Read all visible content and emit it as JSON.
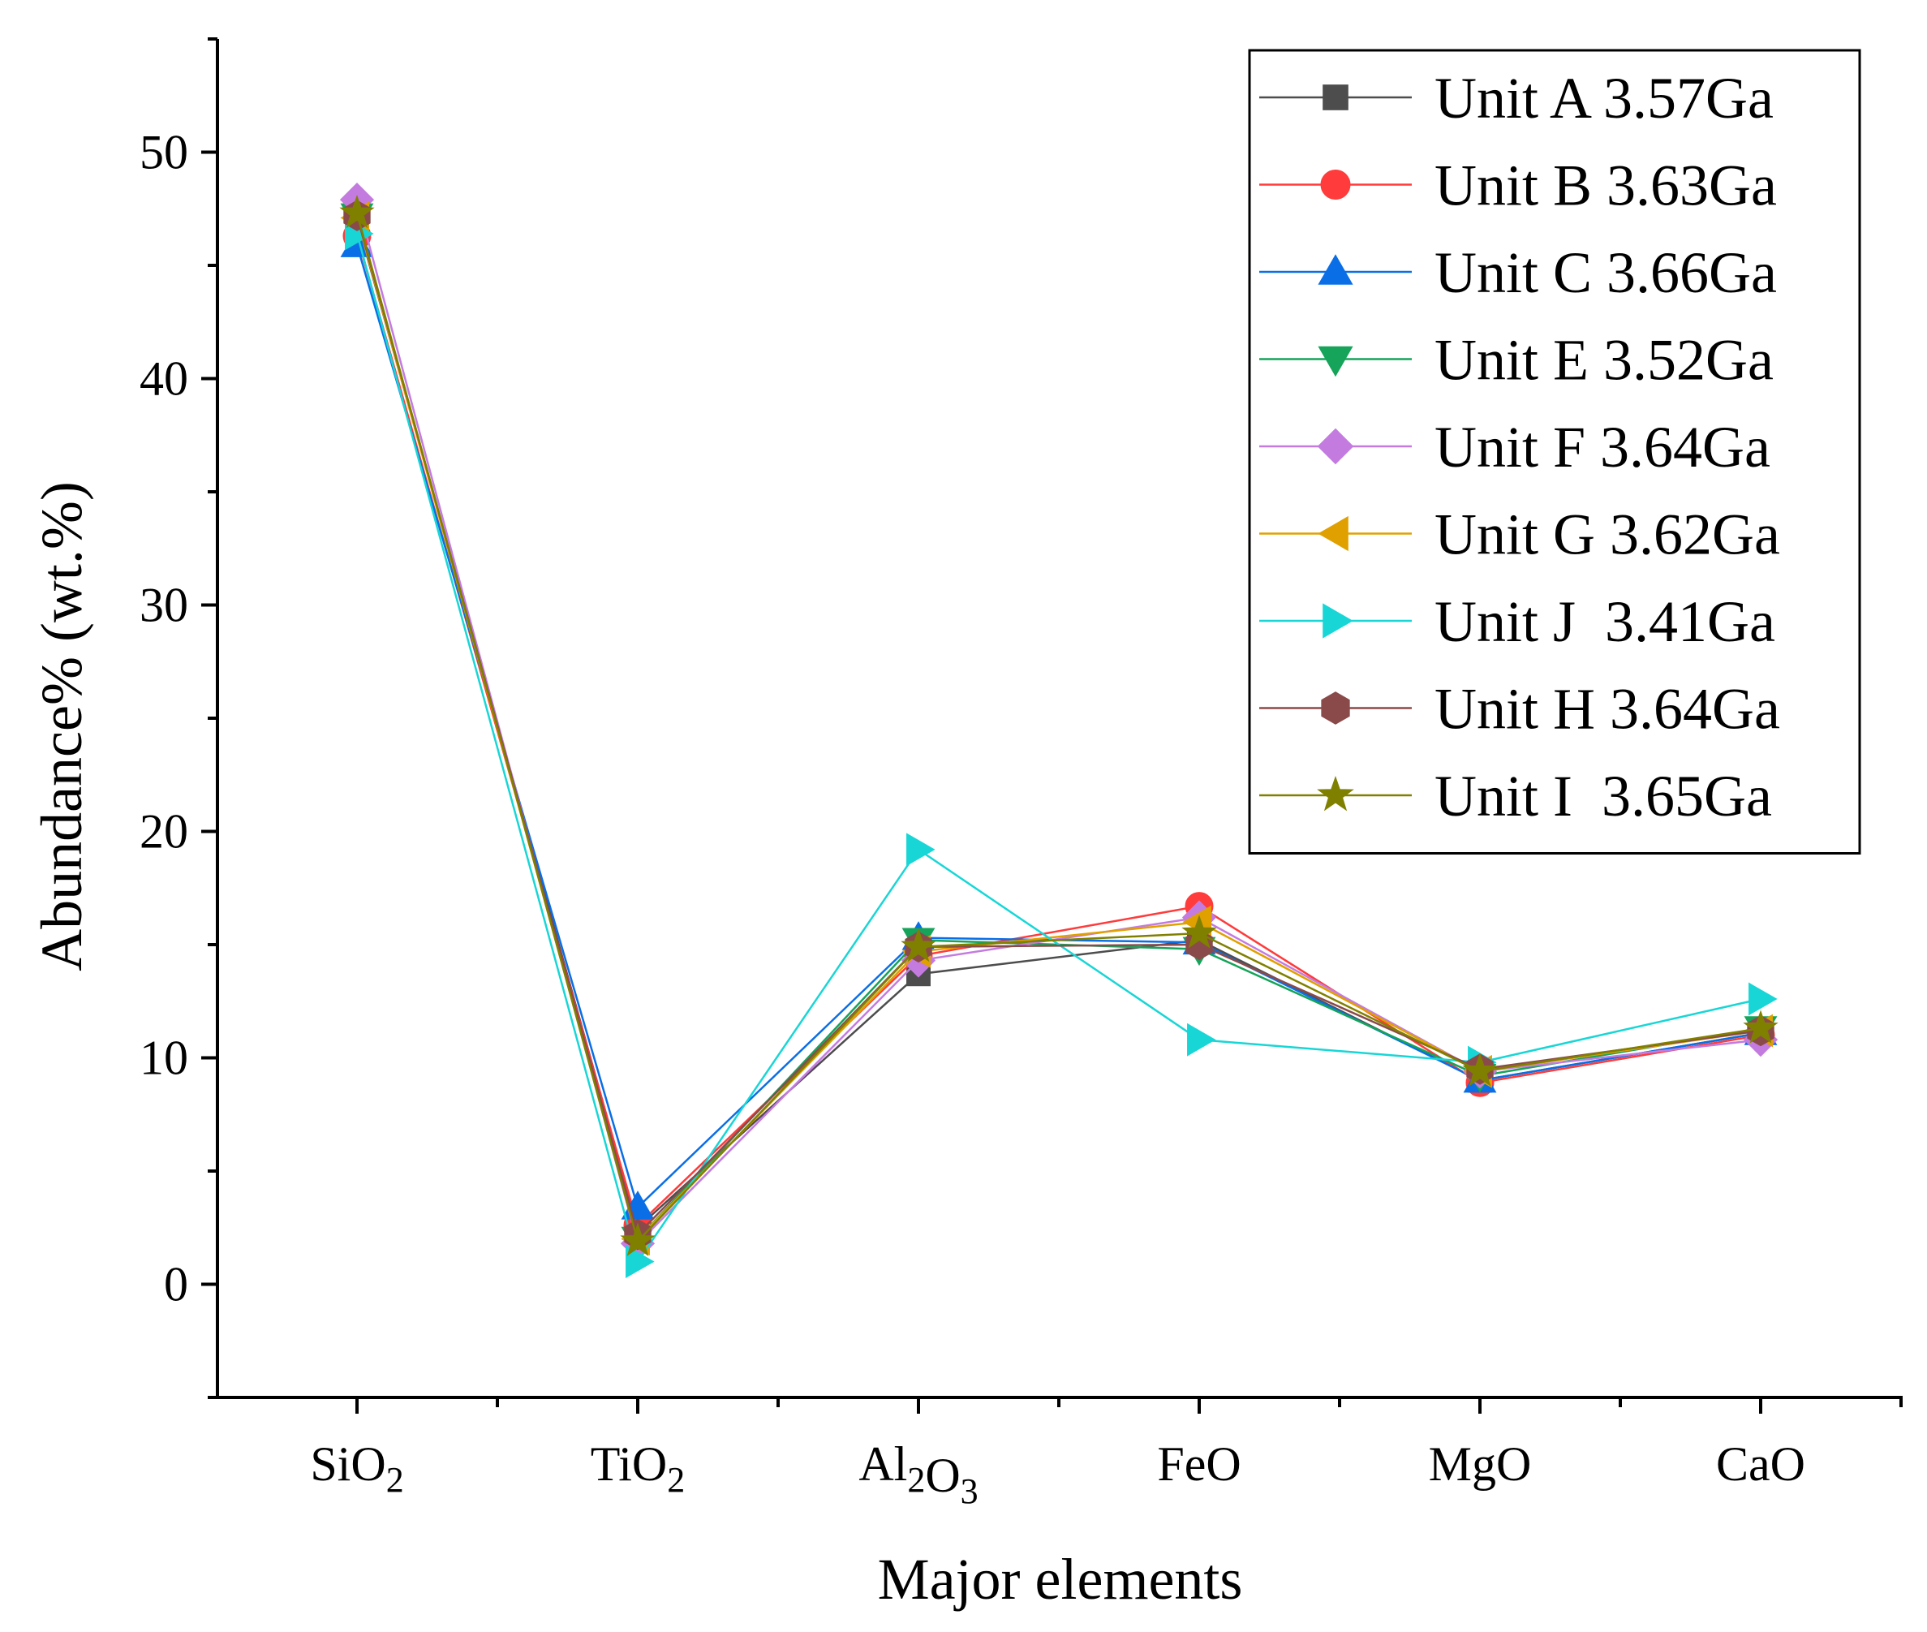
{
  "chart_data": {
    "type": "line",
    "title": "",
    "xlabel": "Major elements",
    "ylabel": "Abundance% (wt.%)",
    "categories": [
      {
        "base": "SiO",
        "subs": [
          [
            "2",
            "O"
          ]
        ],
        "label": "SiO2",
        "parts": [
          {
            "t": "SiO",
            "sub": false
          },
          {
            "t": "2",
            "sub": true
          }
        ]
      },
      {
        "base": "TiO",
        "label": "TiO2",
        "parts": [
          {
            "t": "TiO",
            "sub": false
          },
          {
            "t": "2",
            "sub": true
          }
        ]
      },
      {
        "label": "Al2O3",
        "parts": [
          {
            "t": "Al",
            "sub": false
          },
          {
            "t": "2",
            "sub": true
          },
          {
            "t": "O",
            "sub": false
          },
          {
            "t": "3",
            "sub": true
          }
        ]
      },
      {
        "label": "FeO",
        "parts": [
          {
            "t": "FeO",
            "sub": false
          }
        ]
      },
      {
        "label": "MgO",
        "parts": [
          {
            "t": "MgO",
            "sub": false
          }
        ]
      },
      {
        "label": "CaO",
        "parts": [
          {
            "t": "CaO",
            "sub": false
          }
        ]
      }
    ],
    "ylim": [
      -5,
      55
    ],
    "yticks": [
      0,
      10,
      20,
      30,
      40,
      50
    ],
    "legend_position": "top-right",
    "series": [
      {
        "name": "Unit A 3.57Ga",
        "color": "#4d4d4d",
        "marker": "square",
        "values": [
          47.0,
          2.5,
          13.7,
          15.2,
          9.0,
          11.1
        ]
      },
      {
        "name": "Unit B 3.63Ga",
        "color": "#ff3b3b",
        "marker": "circle",
        "values": [
          46.3,
          2.6,
          14.5,
          16.7,
          8.9,
          11.0
        ]
      },
      {
        "name": "Unit C 3.66Ga",
        "color": "#0a6ee6",
        "marker": "triangle-up",
        "values": [
          45.9,
          3.4,
          15.3,
          15.1,
          9.0,
          11.1
        ]
      },
      {
        "name": "Unit E 3.52Ga",
        "color": "#16a35a",
        "marker": "triangle-down",
        "values": [
          47.2,
          2.0,
          15.2,
          14.8,
          9.2,
          11.3
        ]
      },
      {
        "name": "Unit F 3.64Ga",
        "color": "#c47be0",
        "marker": "diamond",
        "values": [
          47.9,
          1.8,
          14.3,
          16.2,
          9.4,
          10.8
        ]
      },
      {
        "name": "Unit G 3.62Ga",
        "color": "#e0a000",
        "marker": "triangle-left",
        "values": [
          47.1,
          2.0,
          14.7,
          16.0,
          9.4,
          11.2
        ]
      },
      {
        "name": "Unit J  3.41Ga",
        "color": "#18d6d6",
        "marker": "triangle-right",
        "values": [
          46.4,
          1.0,
          19.2,
          10.8,
          9.8,
          12.6
        ]
      },
      {
        "name": "Unit H 3.64Ga",
        "color": "#8b4a4a",
        "marker": "hexagon",
        "values": [
          47.2,
          2.2,
          14.9,
          15.0,
          9.5,
          11.2
        ]
      },
      {
        "name": "Unit I  3.65Ga",
        "color": "#808000",
        "marker": "star",
        "values": [
          47.3,
          1.9,
          14.9,
          15.5,
          9.4,
          11.3
        ]
      }
    ]
  }
}
